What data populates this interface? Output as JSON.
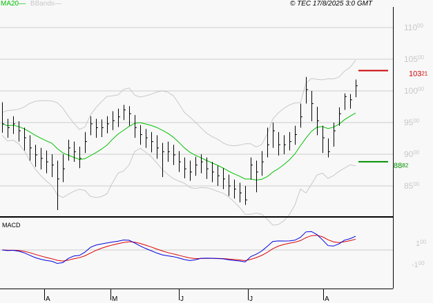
{
  "header": {
    "legend": [
      {
        "label": "MA20",
        "color": "#00c000"
      },
      {
        "label": "BBands",
        "color": "#c8c8c8"
      }
    ],
    "copyright": "© TEC 17/8/2025 3:0 GMT"
  },
  "chart_data": [
    {
      "type": "ohlc",
      "title": "",
      "ylim": [
        8000,
        11400
      ],
      "y_ticks": [
        {
          "main": "110",
          "sup": "00",
          "v": 11000
        },
        {
          "main": "105",
          "sup": "00",
          "v": 10500
        },
        {
          "main": "100",
          "sup": "00",
          "v": 10000
        },
        {
          "main": "95",
          "sup": "00",
          "v": 9500
        },
        {
          "main": "90",
          "sup": "00",
          "v": 9000
        },
        {
          "main": "85",
          "sup": "00",
          "v": 8500
        }
      ],
      "close": [
        9480,
        9420,
        9480,
        9370,
        9260,
        9100,
        8990,
        8935,
        8880,
        8830,
        8610,
        8770,
        9100,
        9040,
        8935,
        9200,
        9480,
        9420,
        9420,
        9480,
        9530,
        9590,
        9700,
        9640,
        9420,
        9310,
        9260,
        9200,
        9100,
        9040,
        9040,
        8990,
        8880,
        8770,
        8720,
        8830,
        8880,
        8770,
        8720,
        8660,
        8610,
        8500,
        8450,
        8390,
        8280,
        8830,
        8720,
        8880,
        9150,
        9370,
        9150,
        9150,
        9200,
        9310,
        9590,
        10020,
        9800,
        9530,
        9260,
        9040,
        9370,
        9640,
        9910,
        9860,
        10080
      ],
      "high": [
        9820,
        9560,
        9600,
        9520,
        9420,
        9300,
        9150,
        9100,
        9060,
        9000,
        8900,
        9000,
        9230,
        9200,
        9120,
        9350,
        9600,
        9560,
        9550,
        9600,
        9680,
        9720,
        9780,
        9760,
        9620,
        9460,
        9400,
        9350,
        9300,
        9180,
        9200,
        9150,
        9050,
        8950,
        8900,
        8960,
        9000,
        8950,
        8880,
        8820,
        8780,
        8680,
        8600,
        8550,
        8500,
        8950,
        8900,
        9050,
        9420,
        9500,
        9350,
        9300,
        9350,
        9450,
        9800,
        10220,
        10000,
        9750,
        9450,
        9250,
        9500,
        9740,
        9960,
        9950,
        10180
      ],
      "low": [
        9340,
        9260,
        9320,
        9200,
        9060,
        8900,
        8800,
        8760,
        8700,
        8640,
        8120,
        8560,
        8900,
        8880,
        8780,
        9020,
        9300,
        9260,
        9270,
        9330,
        9380,
        9430,
        9540,
        9450,
        9260,
        9150,
        9100,
        9030,
        8930,
        8640,
        8880,
        8830,
        8720,
        8620,
        8580,
        8660,
        8700,
        8610,
        8560,
        8500,
        8450,
        8340,
        8300,
        8240,
        8200,
        8600,
        8400,
        8660,
        8950,
        9100,
        8980,
        9000,
        9060,
        9150,
        9420,
        9800,
        9520,
        9300,
        9020,
        8950,
        9120,
        9450,
        9700,
        9720,
        9900
      ],
      "x_labels": [
        "A",
        "M",
        "J",
        "J",
        "A"
      ],
      "x_label_bar_index": [
        15,
        39,
        64,
        89,
        116
      ],
      "markers": [
        {
          "label_main": "103",
          "label_sup": "21",
          "value": 10321,
          "color": "#cc0000"
        },
        {
          "label_main": "88",
          "label_sup": "82",
          "value": 8882,
          "color": "#009000"
        }
      ]
    },
    {
      "type": "line",
      "title": "MACD",
      "y_ticks": [
        {
          "main": "1",
          "sup": "00",
          "v": 100
        },
        {
          "main": "-1",
          "sup": "00",
          "v": -100
        }
      ],
      "series": [
        {
          "name": "MACD",
          "color": "#0000dd"
        },
        {
          "name": "Signal",
          "color": "#dd0000"
        }
      ]
    }
  ]
}
